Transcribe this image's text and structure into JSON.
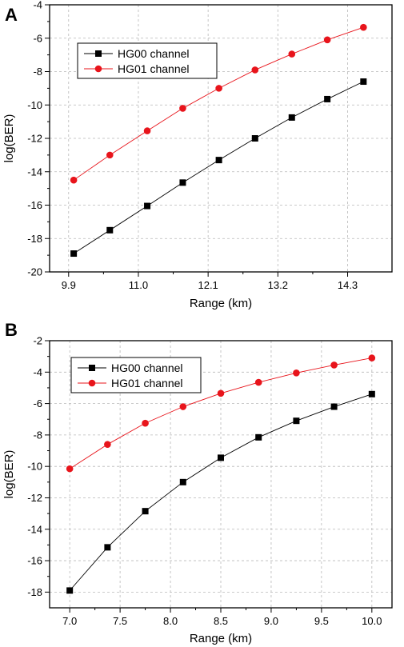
{
  "chart_data": [
    {
      "panel_label": "A",
      "type": "line",
      "xlabel": "Range (km)",
      "ylabel": "log(BER)",
      "xlim": [
        9.6,
        15.0
      ],
      "ylim": [
        -20,
        -4
      ],
      "xticks": [
        "9.9",
        "11.0",
        "12.1",
        "13.2",
        "14.3"
      ],
      "yticks": [
        "-4",
        "-6",
        "-8",
        "-10",
        "-12",
        "-14",
        "-16",
        "-18",
        "-20"
      ],
      "grid": true,
      "legend_position": "top-left",
      "series": [
        {
          "name": "HG00 channel",
          "marker": "square",
          "color": "#000000",
          "x": [
            9.98,
            10.55,
            11.14,
            11.7,
            12.27,
            12.84,
            13.42,
            13.98,
            14.55
          ],
          "y": [
            -18.9,
            -17.5,
            -16.05,
            -14.65,
            -13.3,
            -12.0,
            -10.75,
            -9.65,
            -8.6
          ]
        },
        {
          "name": "HG01 channel",
          "marker": "circle",
          "color": "#e8141b",
          "x": [
            9.98,
            10.55,
            11.14,
            11.7,
            12.27,
            12.84,
            13.42,
            13.98,
            14.55
          ],
          "y": [
            -14.5,
            -13.0,
            -11.55,
            -10.2,
            -9.0,
            -7.9,
            -6.95,
            -6.1,
            -5.35
          ]
        }
      ]
    },
    {
      "panel_label": "B",
      "type": "line",
      "xlabel": "Range (km)",
      "ylabel": "log(BER)",
      "xlim": [
        6.8,
        10.2
      ],
      "ylim": [
        -19,
        -2
      ],
      "xticks": [
        "7.0",
        "7.5",
        "8.0",
        "8.5",
        "9.0",
        "9.5",
        "10.0"
      ],
      "yticks": [
        "-2",
        "-4",
        "-6",
        "-8",
        "-10",
        "-12",
        "-14",
        "-16",
        "-18"
      ],
      "grid": true,
      "legend_position": "top-left",
      "series": [
        {
          "name": "HG00 channel",
          "marker": "square",
          "color": "#000000",
          "x": [
            7.0,
            7.375,
            7.75,
            8.125,
            8.5,
            8.875,
            9.25,
            9.625,
            10.0
          ],
          "y": [
            -17.9,
            -15.15,
            -12.85,
            -11.0,
            -9.45,
            -8.15,
            -7.1,
            -6.2,
            -5.4
          ]
        },
        {
          "name": "HG01 channel",
          "marker": "circle",
          "color": "#e8141b",
          "x": [
            7.0,
            7.375,
            7.75,
            8.125,
            8.5,
            8.875,
            9.25,
            9.625,
            10.0
          ],
          "y": [
            -10.15,
            -8.6,
            -7.25,
            -6.2,
            -5.35,
            -4.65,
            -4.05,
            -3.55,
            -3.1
          ]
        }
      ]
    }
  ]
}
